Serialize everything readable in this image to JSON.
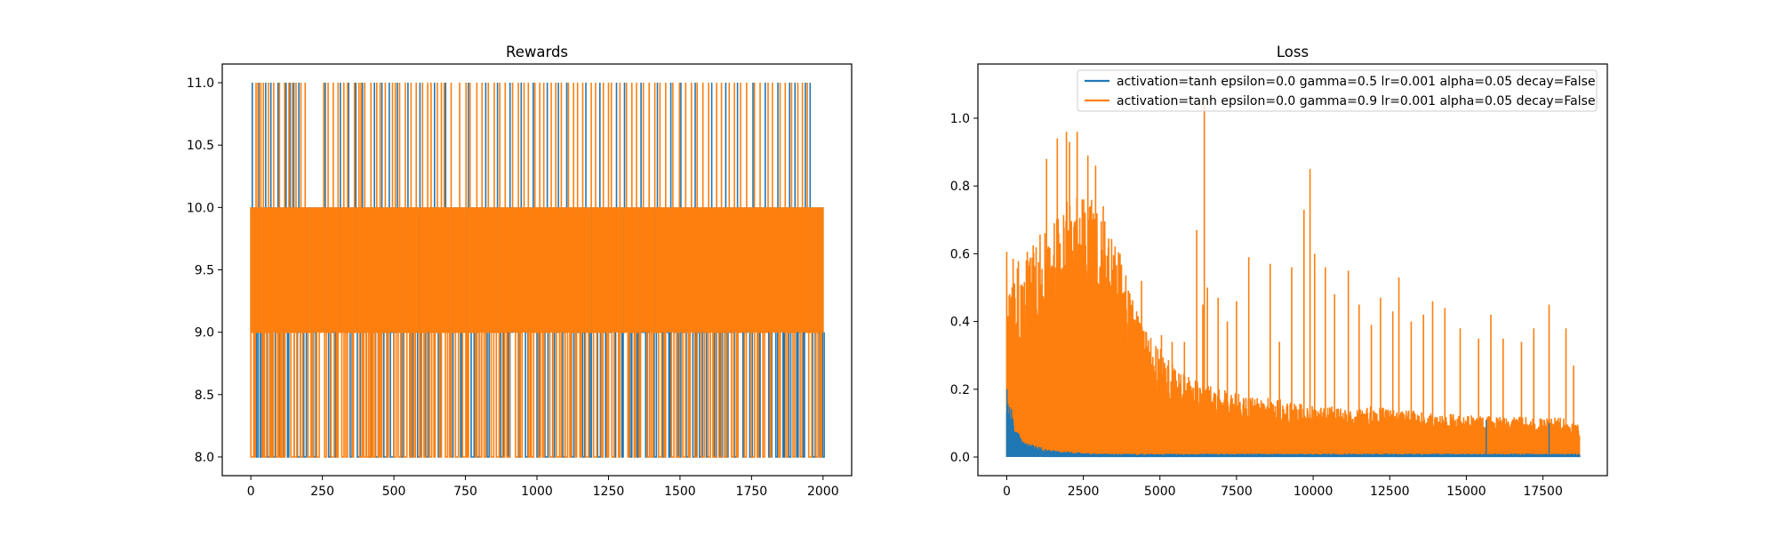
{
  "colors": {
    "series1": "#1f77b4",
    "series2": "#ff7f0e"
  },
  "chart_data": [
    {
      "type": "line",
      "title": "Rewards",
      "xlabel": "",
      "ylabel": "",
      "xlim": [
        -100,
        2100
      ],
      "ylim": [
        7.85,
        11.15
      ],
      "xticks": [
        0,
        250,
        500,
        750,
        1000,
        1250,
        1500,
        1750,
        2000
      ],
      "xtick_labels": [
        "0",
        "250",
        "500",
        "750",
        "1000",
        "1250",
        "1500",
        "1750",
        "2000"
      ],
      "yticks": [
        8.0,
        8.5,
        9.0,
        9.5,
        10.0,
        10.5,
        11.0
      ],
      "ytick_labels": [
        "8.0",
        "8.5",
        "9.0",
        "9.5",
        "10.0",
        "10.5",
        "11.0"
      ],
      "grid": false,
      "series": [
        {
          "color": "#1f77b4",
          "x_range": [
            0,
            2000
          ],
          "band": [
            9,
            10
          ],
          "value_set": [
            8,
            9,
            10,
            11
          ],
          "spikes_high_x": [
            5,
            28,
            52,
            70,
            95,
            123,
            137,
            150,
            168,
            260,
            313,
            342,
            367,
            390,
            432,
            458,
            484,
            512,
            549,
            591,
            642,
            681,
            760,
            821,
            862,
            906,
            945,
            987,
            1036,
            1075,
            1104,
            1171,
            1220,
            1278,
            1306,
            1364,
            1421,
            1468,
            1503,
            1553,
            1611,
            1660,
            1701,
            1755,
            1798,
            1842,
            1883,
            1902,
            1938,
            1955
          ],
          "spikes_low_x": [
            20,
            33,
            58,
            75,
            103,
            128,
            163,
            185,
            218,
            272,
            295,
            347,
            372,
            412,
            436,
            465,
            488,
            525,
            560,
            583,
            610,
            655,
            700,
            733,
            770,
            790,
            826,
            873,
            900,
            935,
            960,
            1000,
            1028,
            1055,
            1090,
            1121,
            1160,
            1185,
            1212,
            1240,
            1270,
            1297,
            1326,
            1350,
            1380,
            1410,
            1440,
            1461,
            1493,
            1522,
            1545,
            1568,
            1592,
            1620,
            1640,
            1662,
            1690,
            1720,
            1744,
            1775,
            1810,
            1835,
            1860,
            1880,
            1908,
            1930,
            1964,
            1988,
            1998
          ]
        },
        {
          "color": "#ff7f0e",
          "x_range": [
            0,
            2000
          ],
          "band": [
            9,
            10
          ],
          "value_set": [
            8,
            9,
            10,
            11
          ],
          "spikes_high_x": [
            18,
            25,
            35,
            44,
            62,
            80,
            100,
            118,
            133,
            145,
            158,
            175,
            190,
            255,
            270,
            288,
            305,
            325,
            338,
            362,
            378,
            385,
            398,
            420,
            440,
            452,
            470,
            495,
            505,
            520,
            540,
            560,
            578,
            600,
            618,
            630,
            652,
            666,
            676,
            700,
            730,
            752,
            766,
            790,
            808,
            830,
            851,
            870,
            889,
            915,
            935,
            955,
            970,
            993,
            1010,
            1024,
            1050,
            1066,
            1085,
            1110,
            1128,
            1142,
            1160,
            1190,
            1205,
            1232,
            1250,
            1260,
            1290,
            1313,
            1332,
            1348,
            1372,
            1392,
            1412,
            1430,
            1450,
            1475,
            1498,
            1520,
            1540,
            1560,
            1580,
            1600,
            1628,
            1645,
            1672,
            1690,
            1712,
            1733,
            1760,
            1780,
            1808,
            1823,
            1850,
            1868,
            1890,
            1912,
            1928,
            1945
          ],
          "spikes_low_x": [
            0,
            10,
            40,
            48,
            66,
            72,
            88,
            98,
            108,
            115,
            140,
            152,
            173,
            200,
            212,
            230,
            258,
            280,
            300,
            318,
            332,
            355,
            380,
            395,
            405,
            418,
            428,
            445,
            450,
            475,
            500,
            515,
            535,
            555,
            570,
            590,
            605,
            625,
            640,
            660,
            680,
            695,
            715,
            740,
            756,
            785,
            800,
            815,
            840,
            858,
            880,
            895,
            925,
            942,
            970,
            980,
            1005,
            1020,
            1045,
            1068,
            1080,
            1098,
            1115,
            1135,
            1150,
            1170,
            1198,
            1225,
            1245,
            1262,
            1285,
            1318,
            1340,
            1358,
            1385,
            1400,
            1425,
            1445,
            1470,
            1487,
            1510,
            1530,
            1552,
            1575,
            1598,
            1615,
            1636,
            1655,
            1680,
            1698,
            1725,
            1750,
            1770,
            1790,
            1815,
            1845,
            1870,
            1895,
            1920,
            1950,
            1975,
            1990
          ]
        }
      ]
    },
    {
      "type": "line",
      "title": "Loss",
      "xlabel": "",
      "ylabel": "",
      "xlim": [
        -940,
        19600
      ],
      "ylim": [
        -0.055,
        1.16
      ],
      "xticks": [
        0,
        2500,
        5000,
        7500,
        10000,
        12500,
        15000,
        17500
      ],
      "xtick_labels": [
        "0",
        "2500",
        "5000",
        "7500",
        "10000",
        "12500",
        "15000",
        "17500"
      ],
      "yticks": [
        0.0,
        0.2,
        0.4,
        0.6,
        0.8,
        1.0
      ],
      "ytick_labels": [
        "0.0",
        "0.2",
        "0.4",
        "0.6",
        "0.8",
        "1.0"
      ],
      "grid": false,
      "legend": {
        "placement": "upper right",
        "entries": [
          {
            "label": "activation=tanh epsilon=0.0 gamma=0.5 lr=0.001 alpha=0.05 decay=False",
            "color": "#1f77b4"
          },
          {
            "label": "activation=tanh epsilon=0.0 gamma=0.9 lr=0.001 alpha=0.05 decay=False",
            "color": "#ff7f0e"
          }
        ]
      },
      "series": [
        {
          "color": "#1f77b4",
          "x_range": [
            0,
            18700
          ],
          "envelope": [
            [
              0,
              0.2
            ],
            [
              120,
              0.17
            ],
            [
              300,
              0.08
            ],
            [
              700,
              0.04
            ],
            [
              1500,
              0.02
            ],
            [
              3000,
              0.01
            ],
            [
              18700,
              0.01
            ]
          ],
          "spikes": [
            [
              9,
              0.2
            ],
            [
              180,
              0.1
            ],
            [
              15650,
              0.11
            ],
            [
              17700,
              0.1
            ]
          ]
        },
        {
          "color": "#ff7f0e",
          "x_range": [
            0,
            18700
          ],
          "envelope": [
            [
              0,
              0.62
            ],
            [
              100,
              0.61
            ],
            [
              500,
              0.6
            ],
            [
              1000,
              0.65
            ],
            [
              1500,
              0.7
            ],
            [
              2000,
              0.76
            ],
            [
              2500,
              0.78
            ],
            [
              2900,
              0.75
            ],
            [
              3300,
              0.7
            ],
            [
              3700,
              0.6
            ],
            [
              4000,
              0.5
            ],
            [
              4300,
              0.42
            ],
            [
              4700,
              0.36
            ],
            [
              5200,
              0.3
            ],
            [
              5700,
              0.25
            ],
            [
              6300,
              0.22
            ],
            [
              7000,
              0.2
            ],
            [
              8000,
              0.18
            ],
            [
              9000,
              0.17
            ],
            [
              10000,
              0.15
            ],
            [
              12000,
              0.15
            ],
            [
              14000,
              0.13
            ],
            [
              16000,
              0.12
            ],
            [
              18000,
              0.12
            ],
            [
              18700,
              0.1
            ]
          ],
          "spikes": [
            [
              1300,
              0.88
            ],
            [
              1650,
              0.94
            ],
            [
              1950,
              0.96
            ],
            [
              2050,
              0.93
            ],
            [
              2300,
              0.96
            ],
            [
              2650,
              0.89
            ],
            [
              2900,
              0.86
            ],
            [
              3150,
              0.74
            ],
            [
              3700,
              0.6
            ],
            [
              4400,
              0.52
            ],
            [
              5050,
              0.36
            ],
            [
              5400,
              0.34
            ],
            [
              5800,
              0.34
            ],
            [
              6200,
              0.67
            ],
            [
              6400,
              0.45
            ],
            [
              6450,
              1.05
            ],
            [
              6550,
              0.5
            ],
            [
              6900,
              0.47
            ],
            [
              7200,
              0.4
            ],
            [
              7500,
              0.46
            ],
            [
              7900,
              0.59
            ],
            [
              8600,
              0.57
            ],
            [
              8900,
              0.34
            ],
            [
              9300,
              0.56
            ],
            [
              9700,
              0.73
            ],
            [
              9900,
              0.85
            ],
            [
              10050,
              0.6
            ],
            [
              10400,
              0.56
            ],
            [
              10700,
              0.48
            ],
            [
              11150,
              0.55
            ],
            [
              11500,
              0.45
            ],
            [
              11900,
              0.39
            ],
            [
              12200,
              0.47
            ],
            [
              12600,
              0.43
            ],
            [
              12800,
              0.53
            ],
            [
              13200,
              0.4
            ],
            [
              13600,
              0.42
            ],
            [
              13900,
              0.46
            ],
            [
              14300,
              0.44
            ],
            [
              14800,
              0.38
            ],
            [
              15400,
              0.35
            ],
            [
              15800,
              0.42
            ],
            [
              16200,
              0.35
            ],
            [
              16800,
              0.34
            ],
            [
              17200,
              0.38
            ],
            [
              17700,
              0.45
            ],
            [
              18250,
              0.38
            ],
            [
              18500,
              0.27
            ]
          ]
        }
      ]
    }
  ]
}
